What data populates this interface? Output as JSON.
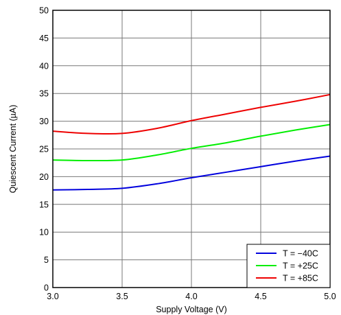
{
  "chart_data": {
    "type": "line",
    "xlabel": "Supply Voltage (V)",
    "ylabel": "Quiescent Current (µA)",
    "xlim": [
      3.0,
      5.0
    ],
    "ylim": [
      0,
      50
    ],
    "x_ticks": [
      3.0,
      3.5,
      4.0,
      4.5,
      5.0
    ],
    "x_tick_labels": [
      "3.0",
      "3.5",
      "4.0",
      "4.5",
      "5.0"
    ],
    "y_ticks": [
      0,
      5,
      10,
      15,
      20,
      25,
      30,
      35,
      40,
      45,
      50
    ],
    "y_tick_labels": [
      "0",
      "5",
      "10",
      "15",
      "20",
      "25",
      "30",
      "35",
      "40",
      "45",
      "50"
    ],
    "grid": true,
    "legend_position": "bottom-right",
    "series": [
      {
        "name": "T = −40C",
        "color": "#0000dd",
        "x": [
          3.0,
          3.25,
          3.5,
          3.75,
          4.0,
          4.25,
          4.5,
          4.75,
          5.0
        ],
        "y": [
          17.6,
          17.7,
          17.9,
          18.7,
          19.8,
          20.8,
          21.8,
          22.8,
          23.7
        ]
      },
      {
        "name": "T = +25C",
        "color": "#00ee00",
        "x": [
          3.0,
          3.25,
          3.5,
          3.75,
          4.0,
          4.25,
          4.5,
          4.75,
          5.0
        ],
        "y": [
          23.0,
          22.9,
          23.0,
          23.9,
          25.1,
          26.1,
          27.3,
          28.4,
          29.4
        ]
      },
      {
        "name": "T = +85C",
        "color": "#ee0000",
        "x": [
          3.0,
          3.25,
          3.5,
          3.75,
          4.0,
          4.25,
          4.5,
          4.75,
          5.0
        ],
        "y": [
          28.2,
          27.8,
          27.8,
          28.7,
          30.1,
          31.3,
          32.5,
          33.6,
          34.8
        ]
      }
    ]
  }
}
